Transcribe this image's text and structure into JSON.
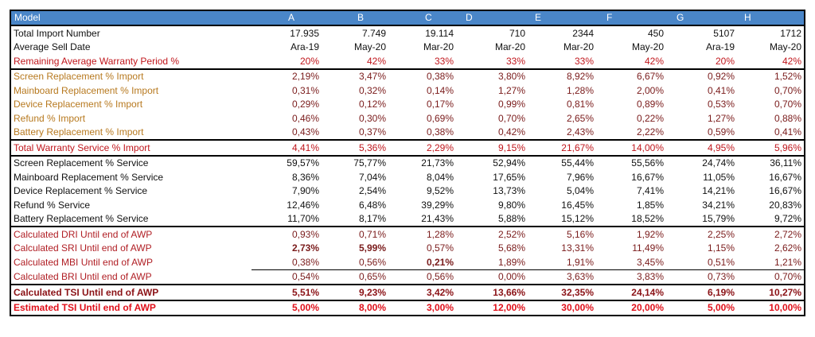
{
  "header": [
    "Model",
    "A",
    "B",
    "C",
    "D",
    "E",
    "F",
    "G",
    "H"
  ],
  "table": {
    "rows": [
      {
        "label": "Total Import Number",
        "values": [
          "17.935",
          "7.749",
          "19.114",
          "710",
          "2344",
          "450",
          "5107",
          "1712"
        ]
      },
      {
        "label": "Average Sell Date",
        "values": [
          "Ara-19",
          "May-20",
          "Mar-20",
          "Mar-20",
          "Mar-20",
          "May-20",
          "Ara-19",
          "May-20"
        ]
      },
      {
        "label": "Remaining Average Warranty Period %",
        "values": [
          "20%",
          "42%",
          "33%",
          "33%",
          "33%",
          "42%",
          "20%",
          "42%"
        ]
      },
      {
        "label": "Screen Replacement % Import",
        "values": [
          "2,19%",
          "3,47%",
          "0,38%",
          "3,80%",
          "8,92%",
          "6,67%",
          "0,92%",
          "1,52%"
        ]
      },
      {
        "label": "Mainboard Replacement % Import",
        "values": [
          "0,31%",
          "0,32%",
          "0,14%",
          "1,27%",
          "1,28%",
          "2,00%",
          "0,41%",
          "0,70%"
        ]
      },
      {
        "label": "Device Replacement % Import",
        "values": [
          "0,29%",
          "0,12%",
          "0,17%",
          "0,99%",
          "0,81%",
          "0,89%",
          "0,53%",
          "0,70%"
        ]
      },
      {
        "label": "Refund % Import",
        "values": [
          "0,46%",
          "0,30%",
          "0,69%",
          "0,70%",
          "2,65%",
          "0,22%",
          "1,27%",
          "0,88%"
        ]
      },
      {
        "label": "Battery Replacement % Import",
        "values": [
          "0,43%",
          "0,37%",
          "0,38%",
          "0,42%",
          "2,43%",
          "2,22%",
          "0,59%",
          "0,41%"
        ]
      },
      {
        "label": "Total Warranty Service % Import",
        "values": [
          "4,41%",
          "5,36%",
          "2,29%",
          "9,15%",
          "21,67%",
          "14,00%",
          "4,95%",
          "5,96%"
        ]
      },
      {
        "label": "Screen Replacement % Service",
        "values": [
          "59,57%",
          "75,77%",
          "21,73%",
          "52,94%",
          "55,44%",
          "55,56%",
          "24,74%",
          "36,11%"
        ]
      },
      {
        "label": "Mainboard Replacement % Service",
        "values": [
          "8,36%",
          "7,04%",
          "8,04%",
          "17,65%",
          "7,96%",
          "16,67%",
          "11,05%",
          "16,67%"
        ]
      },
      {
        "label": "Device Replacement % Service",
        "values": [
          "7,90%",
          "2,54%",
          "9,52%",
          "13,73%",
          "5,04%",
          "7,41%",
          "14,21%",
          "16,67%"
        ]
      },
      {
        "label": "Refund % Service",
        "values": [
          "12,46%",
          "6,48%",
          "39,29%",
          "9,80%",
          "16,45%",
          "1,85%",
          "34,21%",
          "20,83%"
        ]
      },
      {
        "label": "Battery Replacement % Service",
        "values": [
          "11,70%",
          "8,17%",
          "21,43%",
          "5,88%",
          "15,12%",
          "18,52%",
          "15,79%",
          "9,72%"
        ]
      },
      {
        "label": "Calculated DRI Until end of AWP",
        "values": [
          "0,93%",
          "0,71%",
          "1,28%",
          "2,52%",
          "5,16%",
          "1,92%",
          "2,25%",
          "2,72%"
        ]
      },
      {
        "label": "Calculated SRI Until end of AWP",
        "values": [
          "2,73%",
          "5,99%",
          "0,57%",
          "5,68%",
          "13,31%",
          "11,49%",
          "1,15%",
          "2,62%"
        ]
      },
      {
        "label": "Calculated MBI Until end of AWP",
        "values": [
          "0,38%",
          "0,56%",
          "0,21%",
          "1,89%",
          "1,91%",
          "3,45%",
          "0,51%",
          "1,21%"
        ]
      },
      {
        "label": "Calculated BRI Until end of AWP",
        "values": [
          "0,54%",
          "0,65%",
          "0,56%",
          "0,00%",
          "3,63%",
          "3,83%",
          "0,73%",
          "0,70%"
        ]
      },
      {
        "label": "Calculated TSI Until end of AWP",
        "values": [
          "5,51%",
          "9,23%",
          "3,42%",
          "13,66%",
          "32,35%",
          "24,14%",
          "6,19%",
          "10,27%"
        ]
      },
      {
        "label": "Estimated TSI Until end of AWP",
        "values": [
          "5,00%",
          "8,00%",
          "3,00%",
          "12,00%",
          "30,00%",
          "20,00%",
          "5,00%",
          "10,00%"
        ]
      }
    ]
  }
}
